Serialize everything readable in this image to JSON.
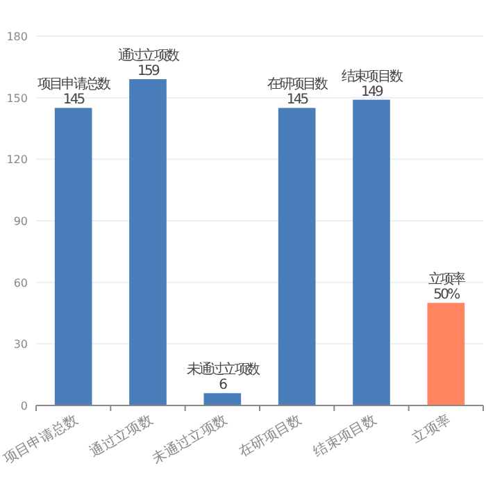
{
  "chart_data": {
    "type": "bar",
    "categories": [
      "项目申请总数",
      "通过立项数",
      "未通过立项数",
      "在研项目数",
      "结束项目数",
      "立项率"
    ],
    "values": [
      145,
      159,
      6,
      145,
      149,
      50
    ],
    "colors": [
      "#4a7ebb",
      "#4a7ebb",
      "#4a7ebb",
      "#4a7ebb",
      "#4a7ebb",
      "#ff8460"
    ],
    "value_labels": [
      "145",
      "159",
      "6",
      "145",
      "149",
      "50%"
    ],
    "ylim": [
      0,
      180
    ],
    "yticks": [
      0,
      30,
      60,
      90,
      120,
      150,
      180
    ],
    "grid": "y"
  }
}
